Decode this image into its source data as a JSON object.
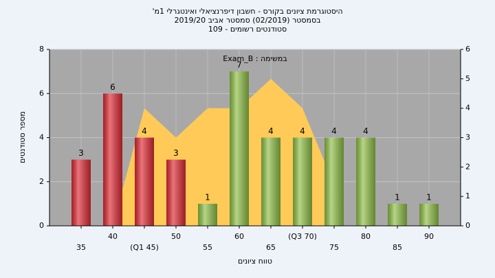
{
  "chart_data": {
    "type": "bar",
    "title": [
      "'היסטוגרמת ציונים בקורס - חשבון דיפרנציאלי ואינטגרלי 1מ",
      "בסמסטר (02/2019)  סמסטר אביב 2019/20",
      "סטודנטים רשומים - 109"
    ],
    "annotation": "Exam_B : במשימה",
    "x_label": "טווח ציונים",
    "y_label": "מספר סטודנטים",
    "categories": [
      "35",
      "40",
      "(Q1 45)",
      "50",
      "55",
      "60",
      "65",
      "(Q3 70)",
      "75",
      "80",
      "85",
      "90"
    ],
    "series": [
      {
        "type": "bar",
        "values": [
          3,
          6,
          4,
          3,
          1,
          7,
          4,
          4,
          4,
          4,
          1,
          1
        ],
        "colors": [
          "#e02a34",
          "#e02a34",
          "#e02a34",
          "#e02a34",
          "#8fc046",
          "#8fc046",
          "#8fc046",
          "#8fc046",
          "#8fc046",
          "#8fc046",
          "#8fc046",
          "#8fc046"
        ]
      },
      {
        "type": "area",
        "axis": "y2",
        "color": "#ffca58",
        "values": [
          null,
          0,
          4,
          3,
          4,
          4,
          5,
          4,
          1.4,
          null,
          null,
          null
        ]
      }
    ],
    "ylim": [
      0,
      8
    ],
    "yticks": [
      0,
      2,
      4,
      6,
      8
    ],
    "y2lim": [
      0,
      6
    ],
    "y2ticks": [
      0,
      1,
      2,
      3,
      4,
      5,
      6
    ],
    "grid": true
  }
}
